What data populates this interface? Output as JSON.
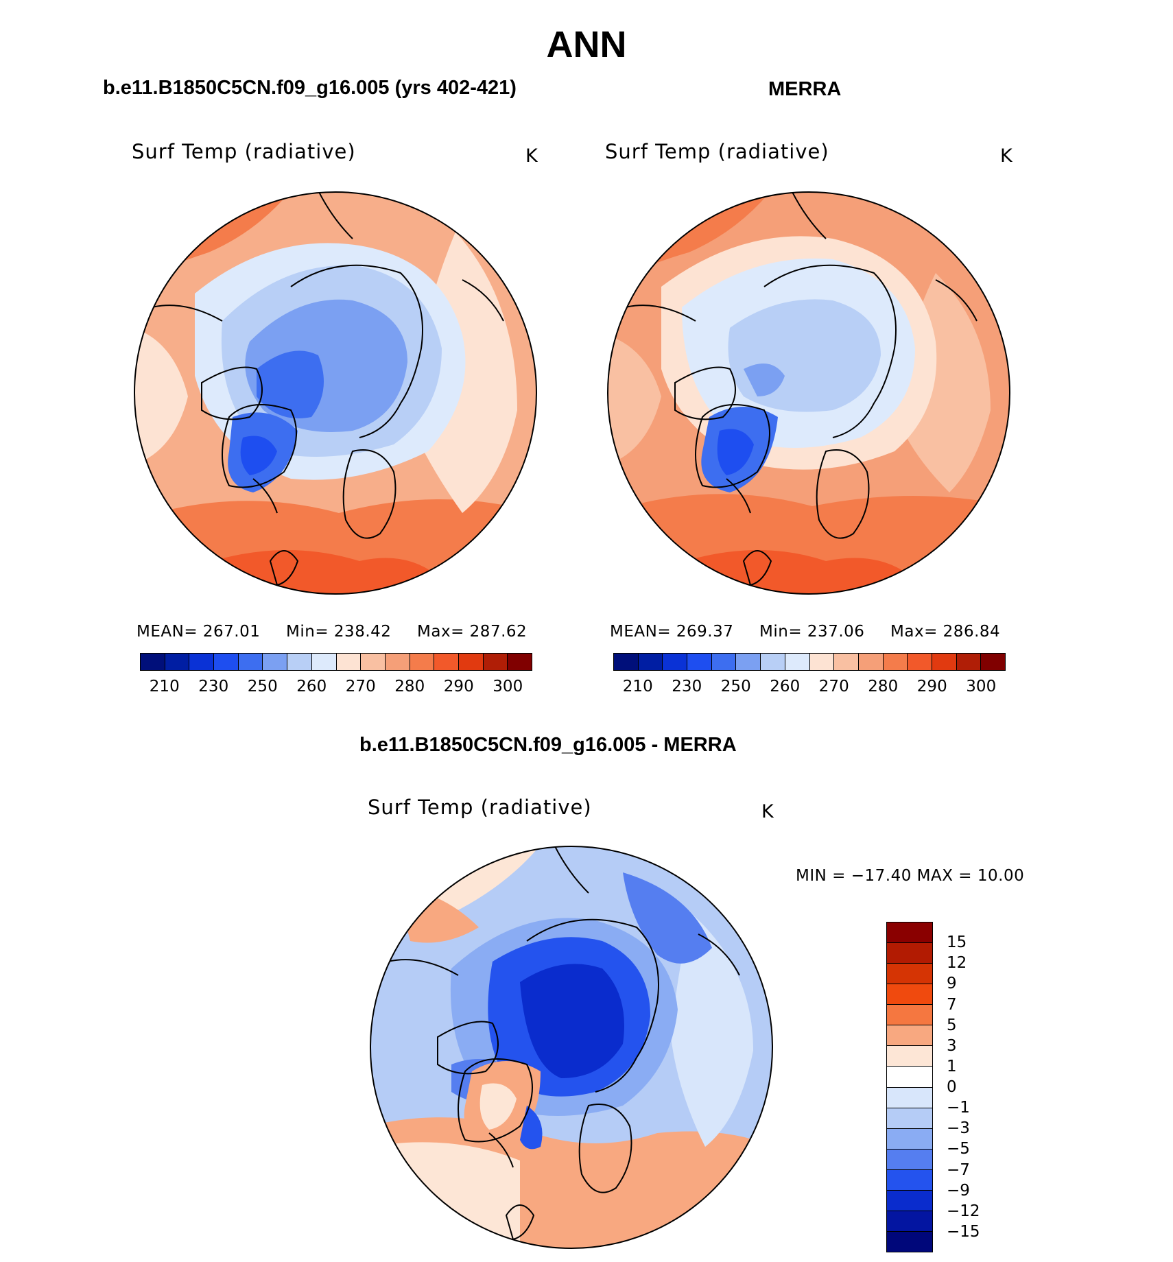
{
  "title": "ANN",
  "panels": {
    "model": {
      "title": "b.e11.B1850C5CN.f09_g16.005 (yrs 402-421)",
      "var_label": "Surf Temp (radiative)",
      "unit": "K",
      "stats": {
        "mean_label": "MEAN=",
        "mean": "267.01",
        "min_label": "Min=",
        "min": "238.42",
        "max_label": "Max=",
        "max": "287.62"
      }
    },
    "obs": {
      "title": "MERRA",
      "var_label": "Surf Temp (radiative)",
      "unit": "K",
      "stats": {
        "mean_label": "MEAN=",
        "mean": "269.37",
        "min_label": "Min=",
        "min": "237.06",
        "max_label": "Max=",
        "max": "286.84"
      }
    },
    "diff": {
      "title": "b.e11.B1850C5CN.f09_g16.005 - MERRA",
      "var_label": "Surf Temp (radiative)",
      "unit": "K",
      "minmax_text": "MIN = −17.40 MAX =   10.00"
    }
  },
  "colorbar_abs": {
    "ticks": [
      "210",
      "230",
      "250",
      "260",
      "270",
      "280",
      "290",
      "300"
    ],
    "colors": [
      "#000f7a",
      "#001ea3",
      "#0a32d6",
      "#1e4ef0",
      "#3d6ef0",
      "#7ba0f2",
      "#b8cff6",
      "#ddeafc",
      "#fde3d3",
      "#f9c0a2",
      "#f59f78",
      "#f47c4b",
      "#f2592a",
      "#e13a10",
      "#b01e06",
      "#800000"
    ]
  },
  "colorbar_diff": {
    "ticks": [
      "15",
      "12",
      "9",
      "7",
      "5",
      "3",
      "1",
      "0",
      "−1",
      "−3",
      "−5",
      "−7",
      "−9",
      "−12",
      "−15"
    ],
    "colors": [
      "#8a0000",
      "#b21b02",
      "#d53404",
      "#f04a0e",
      "#f57740",
      "#f8a880",
      "#fde6d6",
      "#ffffff",
      "#d8e6fb",
      "#b5ccf6",
      "#8aacf3",
      "#557ef0",
      "#2453ee",
      "#0a2ccd",
      "#0315a1",
      "#00077a"
    ]
  },
  "chart_data": [
    {
      "type": "heatmap",
      "title": "b.e11.B1850C5CN.f09_g16.005 (yrs 402-421)",
      "variable": "Surf Temp (radiative)",
      "units": "K",
      "projection": "north polar stereographic",
      "mean": 267.01,
      "min": 238.42,
      "max": 287.62,
      "contour_levels": [
        210,
        215,
        220,
        230,
        240,
        250,
        255,
        260,
        265,
        270,
        275,
        280,
        285,
        290,
        295,
        300
      ]
    },
    {
      "type": "heatmap",
      "title": "MERRA",
      "variable": "Surf Temp (radiative)",
      "units": "K",
      "projection": "north polar stereographic",
      "mean": 269.37,
      "min": 237.06,
      "max": 286.84,
      "contour_levels": [
        210,
        215,
        220,
        230,
        240,
        250,
        255,
        260,
        265,
        270,
        275,
        280,
        285,
        290,
        295,
        300
      ]
    },
    {
      "type": "heatmap",
      "title": "b.e11.B1850C5CN.f09_g16.005 - MERRA",
      "variable": "Surf Temp (radiative)",
      "units": "K",
      "projection": "north polar stereographic",
      "min": -17.4,
      "max": 10.0,
      "contour_levels": [
        -15,
        -12,
        -9,
        -7,
        -5,
        -3,
        -1,
        0,
        1,
        3,
        5,
        7,
        9,
        12,
        15
      ]
    }
  ]
}
